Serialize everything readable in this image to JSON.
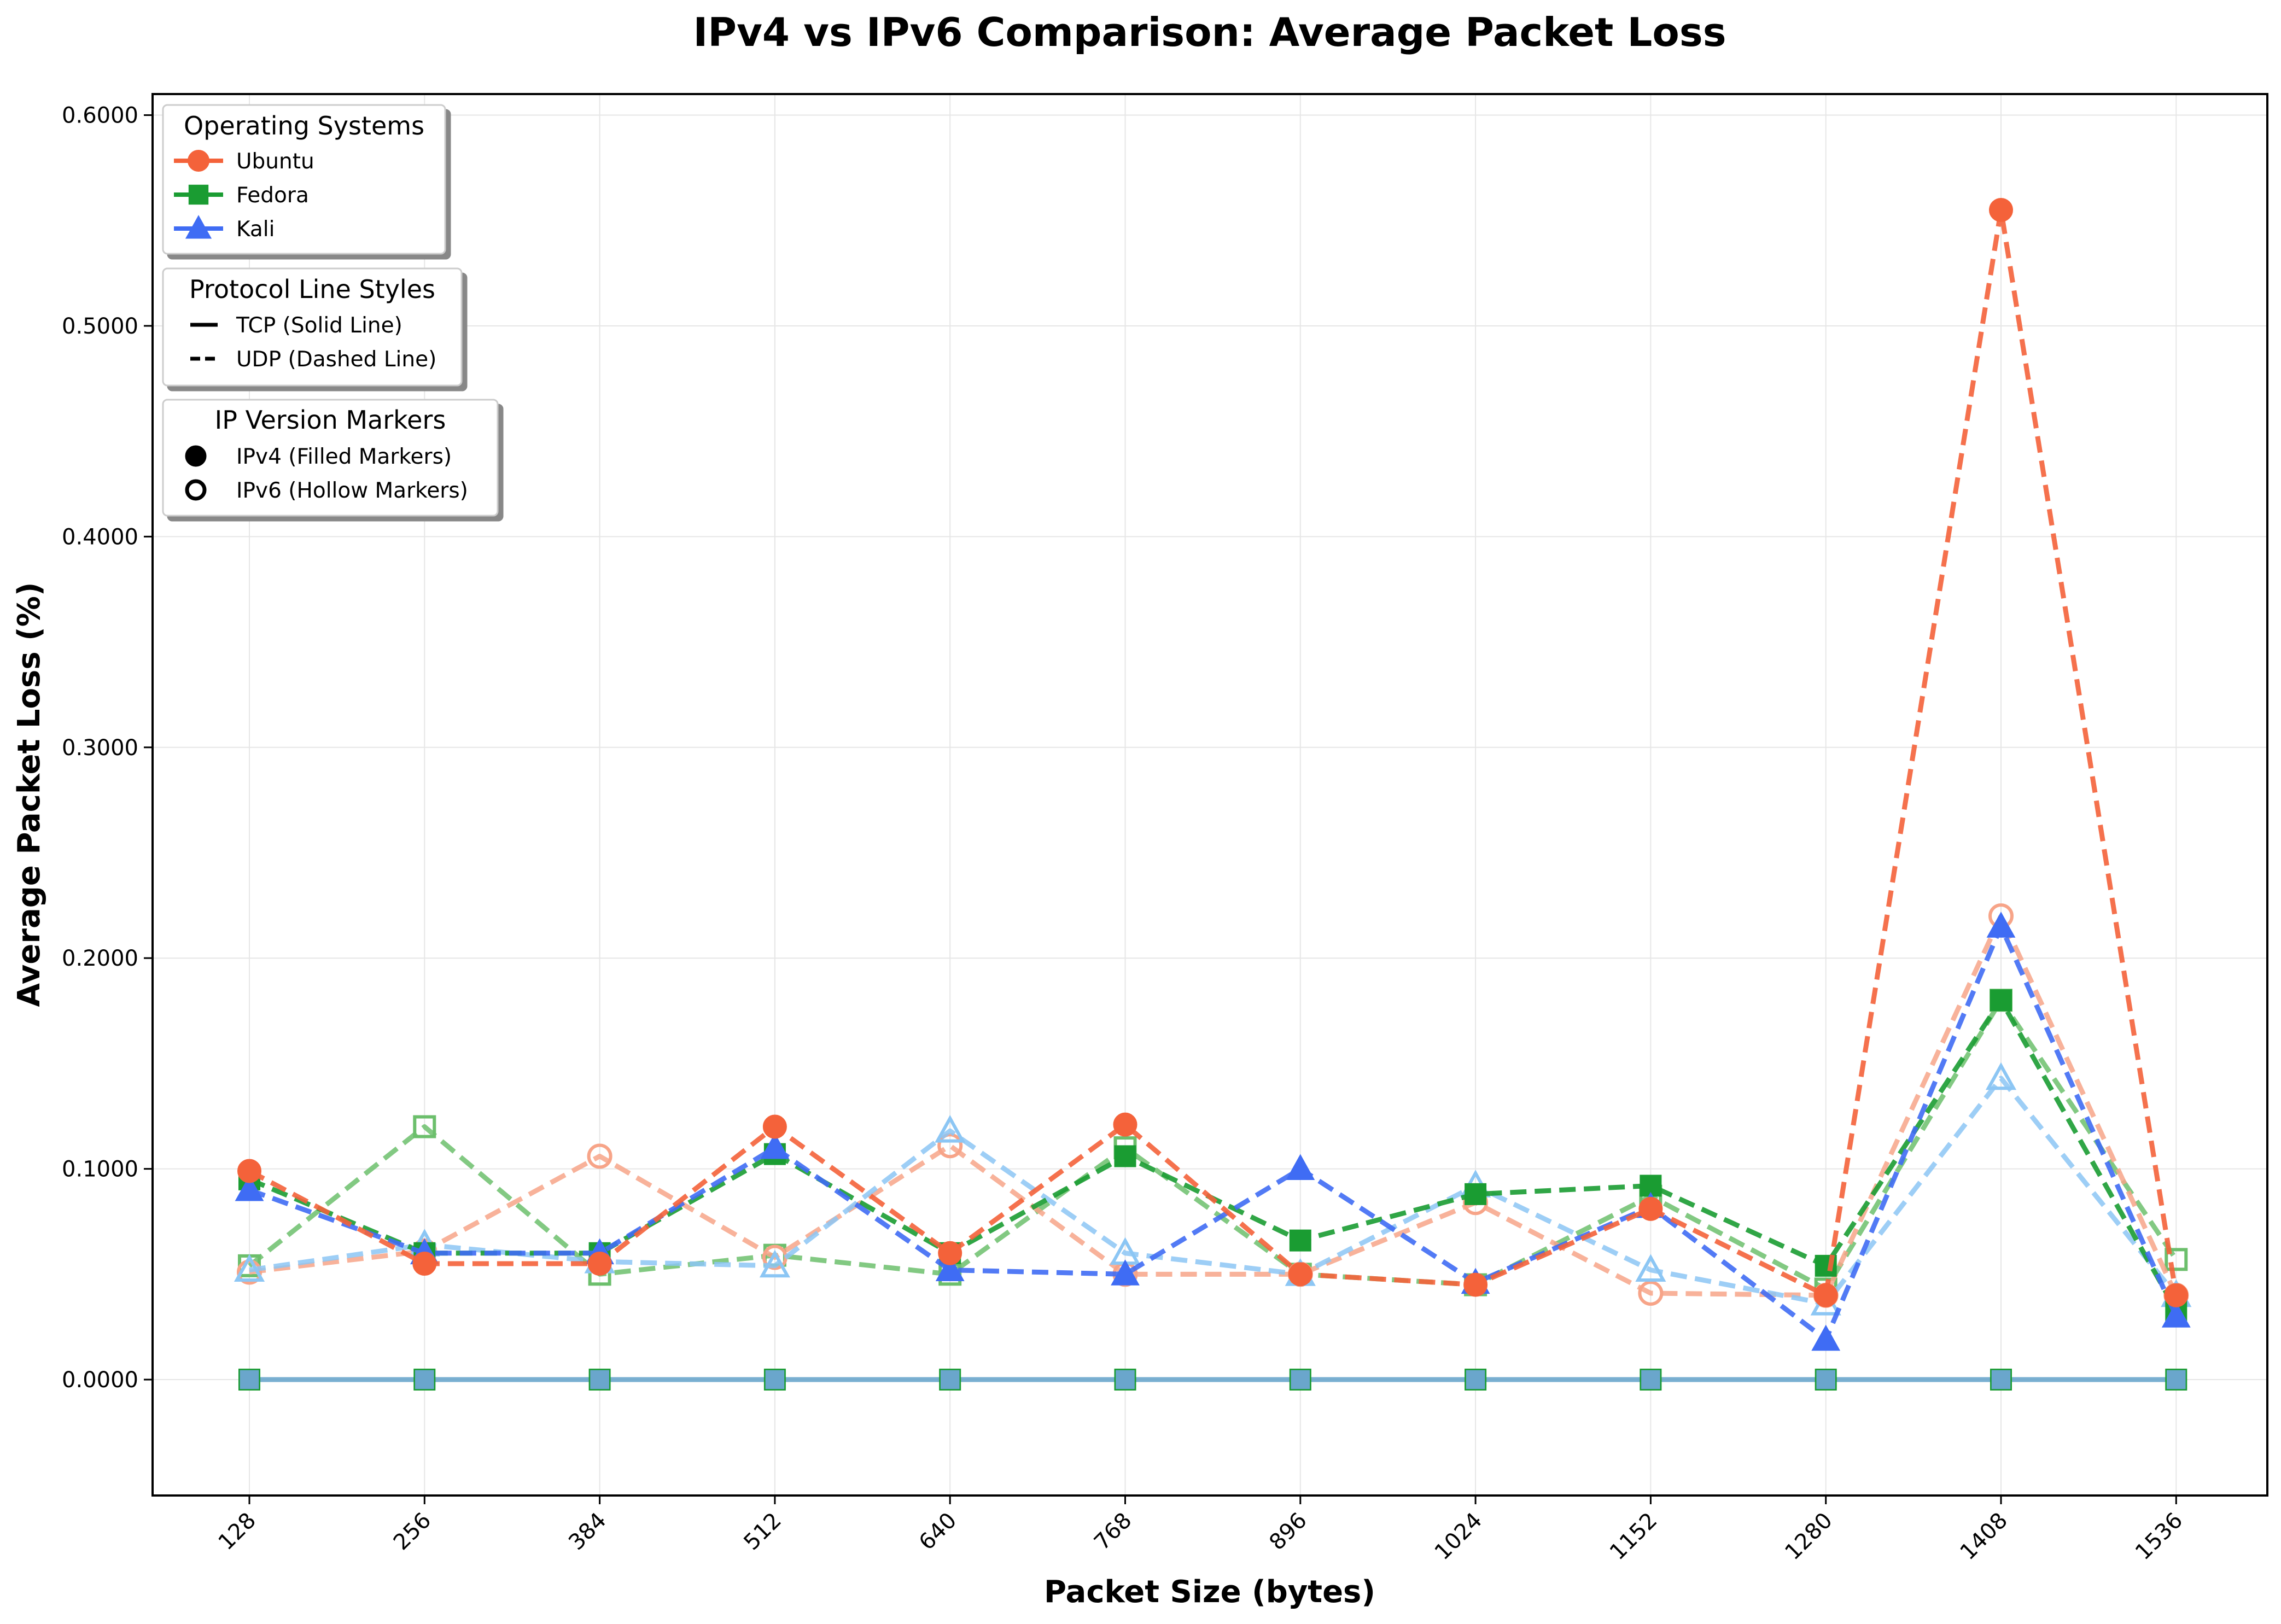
{
  "chart_data": {
    "type": "line",
    "title": "IPv4 vs IPv6 Comparison: Average Packet Loss",
    "xlabel": "Packet Size (bytes)",
    "ylabel": "Average Packet Loss (%)",
    "x": [
      128,
      256,
      384,
      512,
      640,
      768,
      896,
      1024,
      1152,
      1280,
      1408,
      1536
    ],
    "x_tick_labels": [
      "128",
      "256",
      "384",
      "512",
      "640",
      "768",
      "896",
      "1024",
      "1152",
      "1280",
      "1408",
      "1536"
    ],
    "ylim": [
      -0.055,
      0.61
    ],
    "y_ticks": [
      0.0,
      0.1,
      0.2,
      0.3,
      0.4,
      0.5,
      0.6
    ],
    "y_tick_labels": [
      "0.0000",
      "0.1000",
      "0.2000",
      "0.3000",
      "0.4000",
      "0.5000",
      "0.6000"
    ],
    "grid": true,
    "colors": {
      "ubuntu": "#f4623a",
      "fedora": "#1a9c32",
      "kali": "#3f6cf4",
      "ubuntu_ipv6": "#f7a488",
      "fedora_ipv6": "#6cbf6c",
      "kali_ipv6": "#8cc6f4",
      "tcp_line": "#6aa6cc"
    },
    "series": [
      {
        "os": "Ubuntu",
        "protocol": "UDP",
        "ip": "IPv4",
        "marker": "circle",
        "values": [
          0.099,
          0.055,
          0.055,
          0.12,
          0.06,
          0.121,
          0.05,
          0.045,
          0.081,
          0.04,
          0.555,
          0.04
        ]
      },
      {
        "os": "Fedora",
        "protocol": "UDP",
        "ip": "IPv4",
        "marker": "square",
        "values": [
          0.095,
          0.06,
          0.06,
          0.107,
          0.06,
          0.106,
          0.066,
          0.088,
          0.092,
          0.054,
          0.18,
          0.033
        ]
      },
      {
        "os": "Kali",
        "protocol": "UDP",
        "ip": "IPv4",
        "marker": "triangle",
        "values": [
          0.09,
          0.06,
          0.06,
          0.11,
          0.052,
          0.05,
          0.1,
          0.046,
          0.082,
          0.019,
          0.215,
          0.03
        ]
      },
      {
        "os": "Ubuntu",
        "protocol": "UDP",
        "ip": "IPv6",
        "marker": "circle",
        "values": [
          0.051,
          0.061,
          0.106,
          0.058,
          0.111,
          0.05,
          0.05,
          0.084,
          0.041,
          0.04,
          0.22,
          0.04
        ]
      },
      {
        "os": "Fedora",
        "protocol": "UDP",
        "ip": "IPv6",
        "marker": "square",
        "values": [
          0.054,
          0.12,
          0.05,
          0.059,
          0.05,
          0.11,
          0.05,
          0.045,
          0.087,
          0.043,
          0.18,
          0.057
        ]
      },
      {
        "os": "Kali",
        "protocol": "UDP",
        "ip": "IPv6",
        "marker": "triangle",
        "values": [
          0.052,
          0.064,
          0.056,
          0.054,
          0.118,
          0.06,
          0.05,
          0.092,
          0.052,
          0.036,
          0.143,
          0.04
        ]
      },
      {
        "os": "All",
        "protocol": "TCP",
        "ip": "IPv4/IPv6",
        "marker": "square",
        "values": [
          0,
          0,
          0,
          0,
          0,
          0,
          0,
          0,
          0,
          0,
          0,
          0
        ]
      }
    ],
    "legends": [
      {
        "title": "Operating Systems",
        "placement": "top-left",
        "entries": [
          {
            "label": "Ubuntu",
            "color": "#f4623a",
            "marker": "circle"
          },
          {
            "label": "Fedora",
            "color": "#1a9c32",
            "marker": "square"
          },
          {
            "label": "Kali",
            "color": "#3f6cf4",
            "marker": "triangle"
          }
        ]
      },
      {
        "title": "Protocol Line Styles",
        "placement": "top-left",
        "entries": [
          {
            "label": "TCP (Solid Line)",
            "style": "solid"
          },
          {
            "label": "UDP (Dashed Line)",
            "style": "dashed"
          }
        ]
      },
      {
        "title": "IP Version Markers",
        "placement": "top-left",
        "entries": [
          {
            "label": "IPv4 (Filled Markers)",
            "marker": "filled"
          },
          {
            "label": "IPv6 (Hollow Markers)",
            "marker": "hollow"
          }
        ]
      }
    ]
  }
}
